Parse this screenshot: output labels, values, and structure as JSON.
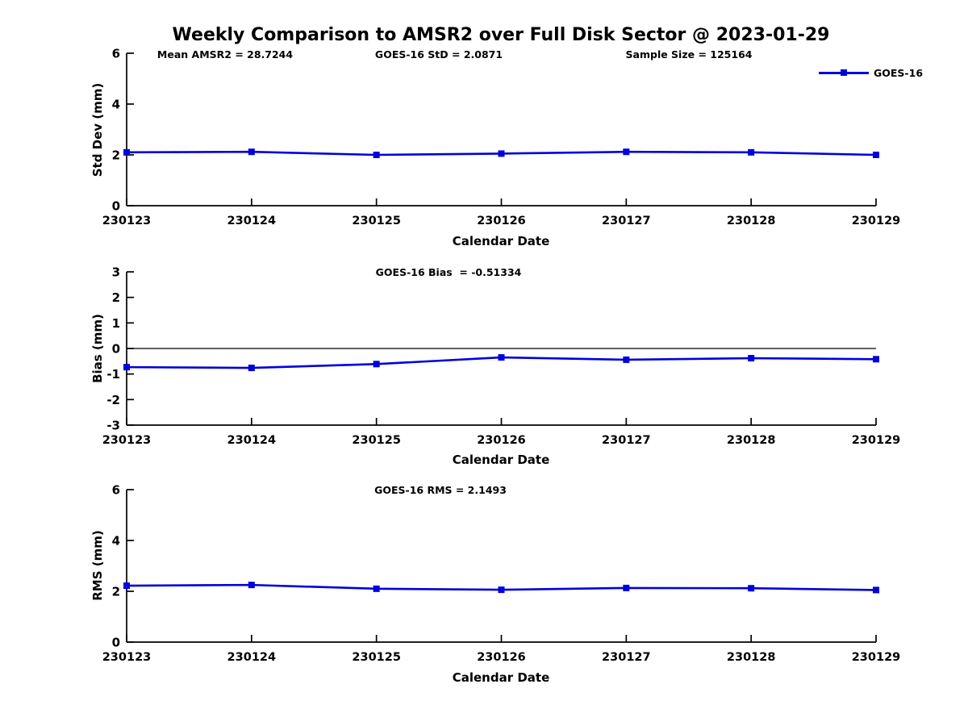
{
  "figure": {
    "title": "Weekly Comparison to AMSR2 over Full Disk Sector @ 2023-01-29",
    "background": "#ffffff",
    "line_color": "#0000DD",
    "axis_color": "#000000",
    "legend": {
      "label": "GOES-16",
      "position": "top-right"
    }
  },
  "chart_data": [
    {
      "type": "line",
      "annotations": [
        "Mean AMSR2 = 28.7244",
        "GOES-16 StD = 2.0871",
        "Sample Size = 125164"
      ],
      "categories": [
        "230123",
        "230124",
        "230125",
        "230126",
        "230127",
        "230128",
        "230129"
      ],
      "series": [
        {
          "name": "GOES-16",
          "values": [
            2.1,
            2.12,
            2.0,
            2.05,
            2.12,
            2.1,
            2.0
          ]
        }
      ],
      "xlabel": "Calendar Date",
      "ylabel": "Std Dev (mm)",
      "ylim": [
        0,
        6
      ],
      "yticks": [
        0,
        2,
        4,
        6
      ],
      "grid": false,
      "zero_line": false,
      "marker": "square"
    },
    {
      "type": "line",
      "annotations": [
        "GOES-16 Bias  = -0.51334"
      ],
      "categories": [
        "230123",
        "230124",
        "230125",
        "230126",
        "230127",
        "230128",
        "230129"
      ],
      "series": [
        {
          "name": "GOES-16",
          "values": [
            -0.73,
            -0.76,
            -0.61,
            -0.35,
            -0.44,
            -0.38,
            -0.42
          ]
        }
      ],
      "xlabel": "Calendar Date",
      "ylabel": "Bias (mm)",
      "ylim": [
        -3,
        3
      ],
      "yticks": [
        -3,
        -2,
        -1,
        0,
        1,
        2,
        3
      ],
      "grid": false,
      "zero_line": true,
      "marker": "square"
    },
    {
      "type": "line",
      "annotations": [
        "GOES-16 RMS = 2.1493"
      ],
      "categories": [
        "230123",
        "230124",
        "230125",
        "230126",
        "230127",
        "230128",
        "230129"
      ],
      "series": [
        {
          "name": "GOES-16",
          "values": [
            2.22,
            2.25,
            2.1,
            2.06,
            2.13,
            2.12,
            2.05
          ]
        }
      ],
      "xlabel": "Calendar Date",
      "ylabel": "RMS (mm)",
      "ylim": [
        0,
        6
      ],
      "yticks": [
        0,
        2,
        4,
        6
      ],
      "grid": false,
      "zero_line": false,
      "marker": "square"
    }
  ]
}
